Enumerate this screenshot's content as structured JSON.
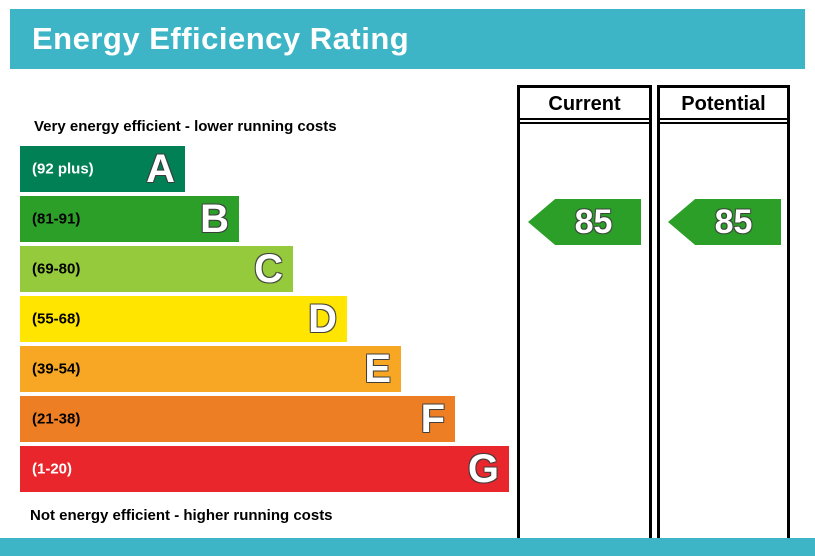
{
  "colors": {
    "teal": "#3db5c6",
    "border": "#000000"
  },
  "header": {
    "title": "Energy Efficiency Rating"
  },
  "captions": {
    "top": "Very energy efficient - lower running costs",
    "bottom": "Not energy efficient - higher running costs"
  },
  "bands": [
    {
      "letter": "A",
      "range": "(92 plus)",
      "color": "#008054",
      "range_color": "#ffffff"
    },
    {
      "letter": "B",
      "range": "(81-91)",
      "color": "#2c9f29",
      "range_color": "#000000"
    },
    {
      "letter": "C",
      "range": "(69-80)",
      "color": "#95ca3c",
      "range_color": "#000000"
    },
    {
      "letter": "D",
      "range": "(55-68)",
      "color": "#ffe500",
      "range_color": "#000000"
    },
    {
      "letter": "E",
      "range": "(39-54)",
      "color": "#f7a723",
      "range_color": "#000000"
    },
    {
      "letter": "F",
      "range": "(21-38)",
      "color": "#ee7e23",
      "range_color": "#000000"
    },
    {
      "letter": "G",
      "range": "(1-20)",
      "color": "#e8262c",
      "range_color": "#ffffff"
    }
  ],
  "columns": [
    {
      "label": "Current",
      "value": "85",
      "arrow_color": "#2c9f29"
    },
    {
      "label": "Potential",
      "value": "85",
      "arrow_color": "#2c9f29"
    }
  ],
  "chart_data": {
    "type": "bar",
    "orientation": "horizontal",
    "title": "Energy Efficiency Rating",
    "categories": [
      "A",
      "B",
      "C",
      "D",
      "E",
      "F",
      "G"
    ],
    "band_ranges": [
      "92 plus",
      "81-91",
      "69-80",
      "55-68",
      "39-54",
      "21-38",
      "1-20"
    ],
    "band_colors": [
      "#008054",
      "#2c9f29",
      "#95ca3c",
      "#ffe500",
      "#f7a723",
      "#ee7e23",
      "#e8262c"
    ],
    "series": [
      {
        "name": "Current",
        "value": 85,
        "band": "B"
      },
      {
        "name": "Potential",
        "value": 85,
        "band": "B"
      }
    ],
    "annotations": [
      "Very energy efficient - lower running costs",
      "Not energy efficient - higher running costs"
    ],
    "value_scale": [
      1,
      100
    ],
    "legend_position": "none",
    "grid": false
  }
}
